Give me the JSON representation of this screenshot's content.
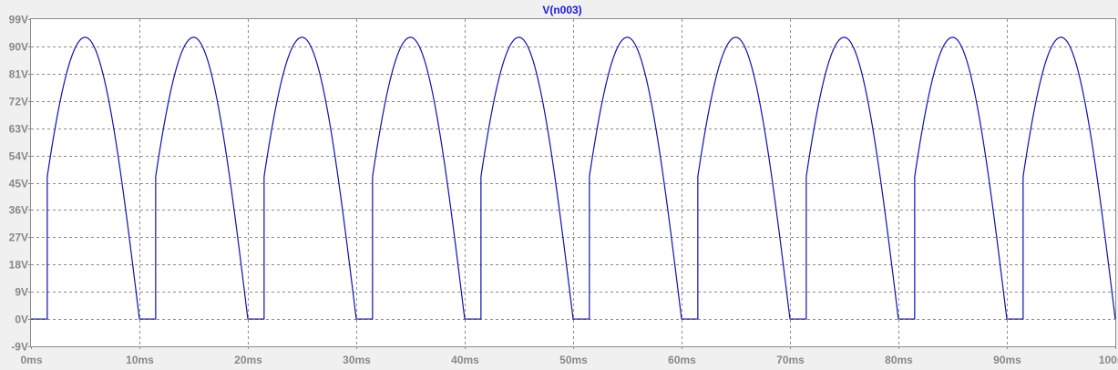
{
  "chart_data": {
    "type": "line",
    "title": "V(n003)",
    "xlabel": "",
    "ylabel": "",
    "x_ticks": [
      "0ms",
      "10ms",
      "20ms",
      "30ms",
      "40ms",
      "50ms",
      "60ms",
      "70ms",
      "80ms",
      "90ms",
      "100ms"
    ],
    "y_ticks": [
      "99V",
      "90V",
      "81V",
      "72V",
      "63V",
      "54V",
      "45V",
      "36V",
      "27V",
      "18V",
      "9V",
      "0V",
      "-9V"
    ],
    "xlim": [
      0,
      100
    ],
    "ylim": [
      -9,
      99
    ],
    "grid": true,
    "series": [
      {
        "name": "V(n003)",
        "color": "#1010b0",
        "x_unit": "ms",
        "y_unit": "V",
        "period": 10,
        "peak": 93,
        "step_level": 47,
        "conduction_start": 1.5,
        "conduction_end": 10.0,
        "points": [
          [
            0,
            0
          ],
          [
            1.5,
            0
          ],
          [
            1.5,
            47
          ],
          [
            2.0,
            56.0
          ],
          [
            3.0,
            73.5
          ],
          [
            4.0,
            86.2
          ],
          [
            5.0,
            93.0
          ],
          [
            6.0,
            88.0
          ],
          [
            7.0,
            72.5
          ],
          [
            8.0,
            49.5
          ],
          [
            9.0,
            25.0
          ],
          [
            10.0,
            0
          ],
          [
            11.5,
            0
          ]
        ]
      }
    ]
  }
}
